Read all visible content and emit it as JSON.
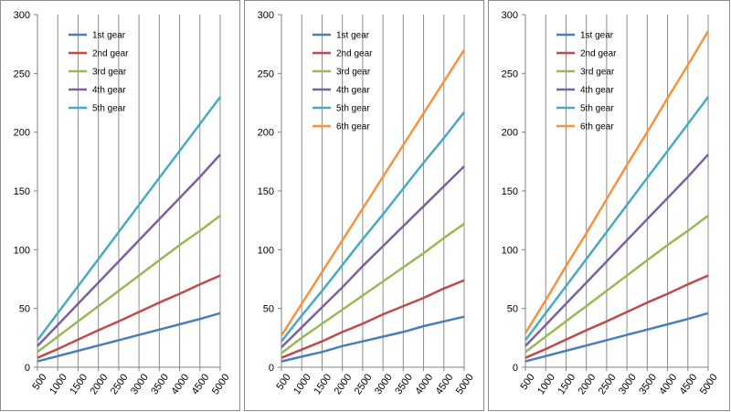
{
  "colors": {
    "1st gear": "#4a7ebb",
    "2nd gear": "#be4b48",
    "3rd gear": "#98b954",
    "4th gear": "#7d60a0",
    "5th gear": "#46aac5",
    "6th gear": "#f69240",
    "grid": "#8c8c8c"
  },
  "chart_data": [
    {
      "type": "line",
      "title": "",
      "xlabel": "",
      "ylabel": "",
      "ylim": [
        0,
        300
      ],
      "yticks": [
        "0",
        "50",
        "100",
        "150",
        "200",
        "250",
        "300"
      ],
      "categories": [
        "500",
        "1000",
        "1500",
        "2000",
        "2500",
        "3000",
        "3500",
        "4000",
        "4500",
        "5000"
      ],
      "legend_position": "top-left",
      "grid": "vertical",
      "series": [
        {
          "name": "1st gear",
          "values": [
            5,
            9.5,
            14,
            18.5,
            23,
            27.5,
            32,
            36.5,
            41,
            46
          ]
        },
        {
          "name": "2nd gear",
          "values": [
            8,
            15.5,
            23.5,
            31.5,
            39,
            47,
            55,
            62.5,
            70.5,
            78
          ]
        },
        {
          "name": "3rd gear",
          "values": [
            13,
            26,
            39,
            52,
            65,
            78,
            91,
            104,
            116,
            129
          ]
        },
        {
          "name": "4th gear",
          "values": [
            18,
            36,
            54,
            72,
            90,
            108,
            126,
            144,
            162,
            181
          ]
        },
        {
          "name": "5th gear",
          "values": [
            23,
            46,
            69,
            92,
            115,
            138,
            161,
            184,
            207,
            230
          ]
        }
      ]
    },
    {
      "type": "line",
      "title": "",
      "xlabel": "",
      "ylabel": "",
      "ylim": [
        0,
        300
      ],
      "yticks": [
        "0",
        "50",
        "100",
        "150",
        "200",
        "250",
        "300"
      ],
      "categories": [
        "500",
        "1000",
        "1500",
        "2000",
        "2500",
        "3000",
        "3500",
        "4000",
        "4500",
        "5000"
      ],
      "legend_position": "top-left",
      "grid": "vertical",
      "series": [
        {
          "name": "1st gear",
          "values": [
            5,
            9,
            13,
            18,
            22,
            26,
            30,
            35,
            39,
            43
          ]
        },
        {
          "name": "2nd gear",
          "values": [
            8,
            15,
            22,
            30,
            37,
            45,
            52,
            59,
            67,
            74
          ]
        },
        {
          "name": "3rd gear",
          "values": [
            12,
            25,
            37,
            49,
            61,
            73,
            85,
            97,
            110,
            122
          ]
        },
        {
          "name": "4th gear",
          "values": [
            17,
            34,
            51,
            68,
            86,
            103,
            120,
            137,
            154,
            171
          ]
        },
        {
          "name": "5th gear",
          "values": [
            22,
            44,
            65,
            87,
            109,
            130,
            152,
            174,
            195,
            217
          ]
        },
        {
          "name": "6th gear",
          "values": [
            27,
            54,
            81,
            108,
            135,
            162,
            189,
            216,
            243,
            270
          ]
        }
      ]
    },
    {
      "type": "line",
      "title": "",
      "xlabel": "",
      "ylabel": "",
      "ylim": [
        0,
        300
      ],
      "yticks": [
        "0",
        "50",
        "100",
        "150",
        "200",
        "250",
        "300"
      ],
      "categories": [
        "500",
        "1000",
        "1500",
        "2000",
        "2500",
        "3000",
        "3500",
        "4000",
        "4500",
        "5000"
      ],
      "legend_position": "top-left",
      "grid": "vertical",
      "series": [
        {
          "name": "1st gear",
          "values": [
            5,
            9.5,
            14,
            18.5,
            23,
            27.5,
            32,
            36.5,
            41,
            46
          ]
        },
        {
          "name": "2nd gear",
          "values": [
            8,
            15.5,
            23.5,
            31.5,
            39,
            47,
            55,
            62.5,
            70.5,
            78
          ]
        },
        {
          "name": "3rd gear",
          "values": [
            13,
            26,
            39,
            52,
            65,
            78,
            91,
            104,
            116,
            129
          ]
        },
        {
          "name": "4th gear",
          "values": [
            18,
            36,
            54,
            72,
            90,
            108,
            126,
            144,
            162,
            181
          ]
        },
        {
          "name": "5th gear",
          "values": [
            23,
            46,
            69,
            92,
            115,
            138,
            161,
            184,
            207,
            230
          ]
        },
        {
          "name": "6th gear",
          "values": [
            29,
            57,
            86,
            114,
            143,
            172,
            200,
            229,
            257,
            286
          ]
        }
      ]
    }
  ]
}
